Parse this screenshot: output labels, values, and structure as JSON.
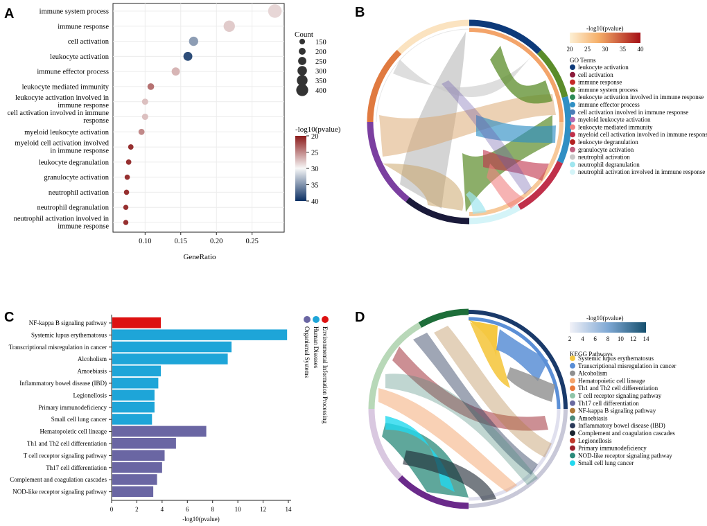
{
  "panels": {
    "A": "A",
    "B": "B",
    "C": "C",
    "D": "D"
  },
  "chart_data": [
    {
      "type": "scatter",
      "panel": "A",
      "title": "",
      "xlabel": "GeneRatio",
      "ylabel": "",
      "xlim": [
        0.055,
        0.295
      ],
      "xticks": [
        "0.10",
        "0.15",
        "0.20",
        "0.25"
      ],
      "xtick_values": [
        0.1,
        0.15,
        0.2,
        0.25
      ],
      "categories": [
        "immune system process",
        "immune response",
        "cell activation",
        "leukocyte activation",
        "immune effector process",
        "leukocyte mediated immunity",
        "leukocyte activation involved in|immune response",
        "cell activation involved in immune|response",
        "myeloid leukocyte activation",
        "myeloid cell activation involved|in immune response",
        "leukocyte degranulation",
        "granulocyte activation",
        "neutrophil activation",
        "neutrophil degranulation",
        "neutrophil activation involved in|immune response"
      ],
      "gene_ratio": [
        0.282,
        0.218,
        0.168,
        0.16,
        0.143,
        0.108,
        0.1,
        0.1,
        0.095,
        0.08,
        0.077,
        0.075,
        0.074,
        0.073,
        0.073
      ],
      "count": [
        410,
        330,
        255,
        245,
        220,
        165,
        150,
        150,
        145,
        120,
        118,
        115,
        113,
        110,
        110
      ],
      "neg_log10_pvalue": [
        28.5,
        28.0,
        34.5,
        38.5,
        27.0,
        24.0,
        27.5,
        27.5,
        25.0,
        21.0,
        21.0,
        21.0,
        21.0,
        21.0,
        21.0
      ],
      "size_legend": {
        "title": "Count",
        "values": [
          150,
          200,
          250,
          300,
          350,
          400
        ],
        "labels": [
          "150",
          "200",
          "250",
          "300",
          "350",
          "400"
        ]
      },
      "color_legend": {
        "title": "-log10(pvalue)",
        "min": 20,
        "max": 40,
        "labels": [
          "20",
          "25",
          "30",
          "35",
          "40"
        ],
        "low_color": "#8b1a1a",
        "mid_color": "#f7f7f7",
        "high_color": "#0b2f63"
      }
    },
    {
      "type": "chord",
      "panel": "B",
      "colorbar": {
        "title": "-log10(pvalue)",
        "labels": [
          "20",
          "25",
          "30",
          "35",
          "40"
        ],
        "low_color": "#fdf0d5",
        "high_color": "#a50f15"
      },
      "legend_title": "GO Terms",
      "terms": [
        {
          "name": "leukocyte activation",
          "color": "#0d3a7a"
        },
        {
          "name": "cell activation",
          "color": "#8b1a3a"
        },
        {
          "name": "immune response",
          "color": "#c62828"
        },
        {
          "name": "immune system process",
          "color": "#5b8c2a"
        },
        {
          "name": "leukocyte activation involved in immune response",
          "color": "#2e8b57"
        },
        {
          "name": "immune effector process",
          "color": "#2f8fc4"
        },
        {
          "name": "cell activation involved in immune response",
          "color": "#4a7db8"
        },
        {
          "name": "myeloid leukocyte activation",
          "color": "#b06ab3"
        },
        {
          "name": "leukocyte mediated immunity",
          "color": "#f08080"
        },
        {
          "name": "myeloid cell activation involved in immune response",
          "color": "#c0304a"
        },
        {
          "name": "leukocyte degranulation",
          "color": "#b22222"
        },
        {
          "name": "granulocyte activation",
          "color": "#c06080"
        },
        {
          "name": "neutrophil activation",
          "color": "#c8c8c8"
        },
        {
          "name": "neutrophil degranulation",
          "color": "#9fe6ef"
        },
        {
          "name": "neutrophil activation involved in immune response",
          "color": "#d4f4f8"
        }
      ]
    },
    {
      "type": "bar",
      "panel": "C",
      "orientation": "horizontal",
      "xlabel": "-log10(pvalue)",
      "xlim": [
        0,
        14
      ],
      "xticks": [
        0,
        2,
        4,
        6,
        8,
        10,
        12,
        14
      ],
      "categories": [
        "NF-kappa B signaling pathway",
        "Systemic lupus erythematosus",
        "Transcriptional misregulation in cancer",
        "Alcoholism",
        "Amoebiasis",
        "Inflammatory bowel disease (IBD)",
        "Legionellosis",
        "Primary immunodeficiency",
        "Small cell lung cancer",
        "Hematopoietic cell lineage",
        "Th1 and Th2 cell differentiation",
        "T cell receptor signaling pathway",
        "Th17 cell differentiation",
        "Complement and coagulation cascades",
        "NOD-like receptor signaling pathway"
      ],
      "values": [
        3.9,
        13.9,
        9.5,
        9.2,
        3.9,
        3.7,
        3.4,
        3.4,
        3.2,
        7.5,
        5.1,
        4.2,
        4.0,
        3.6,
        3.3
      ],
      "groups": [
        0,
        1,
        1,
        1,
        1,
        1,
        1,
        1,
        1,
        2,
        2,
        2,
        2,
        2,
        2
      ],
      "legend": [
        {
          "name": "Environmental Information Processing",
          "color": "#dd1111"
        },
        {
          "name": "Human Diseases",
          "color": "#1ea5d8"
        },
        {
          "name": "Organismal Systems",
          "color": "#6a66a3"
        }
      ]
    },
    {
      "type": "chord",
      "panel": "D",
      "colorbar": {
        "title": "-log10(pvalue)",
        "labels": [
          "2",
          "4",
          "6",
          "8",
          "10",
          "12",
          "14"
        ],
        "low_color": "#f2f2f8",
        "high_color": "#16506e"
      },
      "legend_title": "KEGG Pathways",
      "terms": [
        {
          "name": "Systemic lupus erythematosus",
          "color": "#f5c842"
        },
        {
          "name": "Transcriptional misregulation in cancer",
          "color": "#5b8fd6"
        },
        {
          "name": "Alcoholism",
          "color": "#8f8f8f"
        },
        {
          "name": "Hematopoietic cell lineage",
          "color": "#f4a36b"
        },
        {
          "name": "Th1 and Th2 cell differentiation",
          "color": "#ea7a3c"
        },
        {
          "name": "T cell receptor signaling pathway",
          "color": "#8fc4a8"
        },
        {
          "name": "Th17 cell differentiation",
          "color": "#6a6aa0"
        },
        {
          "name": "NF-kappa B signaling pathway",
          "color": "#b07a3a"
        },
        {
          "name": "Amoebiasis",
          "color": "#4a8a7a"
        },
        {
          "name": "Inflammatory bowel disease (IBD)",
          "color": "#2a3a5a"
        },
        {
          "name": "Complement and coagulation cascades",
          "color": "#1a2430"
        },
        {
          "name": "Legionellosis",
          "color": "#c0392b"
        },
        {
          "name": "Primary immunodeficiency",
          "color": "#9a1f2a"
        },
        {
          "name": "NOD-like receptor signaling pathway",
          "color": "#2a8a7a"
        },
        {
          "name": "Small cell lung cancer",
          "color": "#22d8ee"
        }
      ]
    }
  ]
}
